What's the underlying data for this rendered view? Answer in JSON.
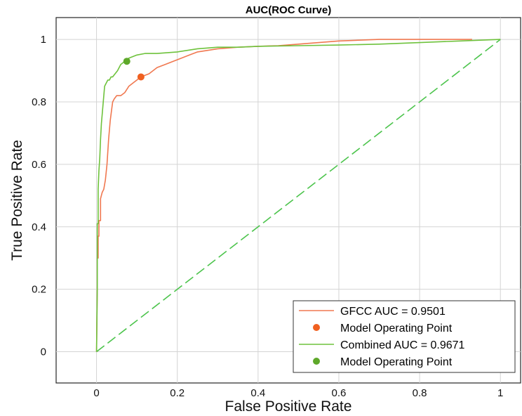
{
  "chart_data": {
    "type": "line",
    "title": "AUC(ROC Curve)",
    "xlabel": "False Positive Rate",
    "ylabel": "True Positive Rate",
    "xlim": [
      -0.1,
      1.05
    ],
    "ylim": [
      -0.1,
      1.07
    ],
    "xticks": [
      0,
      0.2,
      0.4,
      0.6,
      0.8,
      1
    ],
    "xtick_labels": [
      "0",
      "0.2",
      "0.4",
      "0.6",
      "0.8",
      "1"
    ],
    "yticks": [
      0,
      0.2,
      0.4,
      0.6,
      0.8,
      1
    ],
    "ytick_labels": [
      "0",
      "0.2",
      "0.4",
      "0.6",
      "0.8",
      "1"
    ],
    "grid": true,
    "legend_position": "bottom-right",
    "series": [
      {
        "name": "GFCC AUC = 0.9501",
        "kind": "line",
        "color": "#f07850",
        "x": [
          0,
          0.002,
          0.002,
          0.004,
          0.004,
          0.006,
          0.006,
          0.01,
          0.01,
          0.014,
          0.018,
          0.022,
          0.026,
          0.03,
          0.034,
          0.038,
          0.04,
          0.044,
          0.05,
          0.06,
          0.07,
          0.08,
          0.09,
          0.1,
          0.11,
          0.13,
          0.15,
          0.17,
          0.19,
          0.21,
          0.23,
          0.25,
          0.3,
          0.35,
          0.4,
          0.45,
          0.5,
          0.55,
          0.6,
          0.7,
          0.8,
          0.9,
          0.93
        ],
        "y": [
          0,
          0.21,
          0.3,
          0.3,
          0.37,
          0.37,
          0.42,
          0.42,
          0.49,
          0.51,
          0.52,
          0.55,
          0.6,
          0.68,
          0.74,
          0.78,
          0.8,
          0.81,
          0.82,
          0.82,
          0.83,
          0.85,
          0.86,
          0.87,
          0.88,
          0.89,
          0.91,
          0.92,
          0.93,
          0.94,
          0.95,
          0.96,
          0.97,
          0.975,
          0.978,
          0.98,
          0.985,
          0.99,
          0.995,
          1,
          1,
          1,
          1
        ]
      },
      {
        "name": "Model Operating Point",
        "kind": "point",
        "color": "#f06020",
        "x": [
          0.11
        ],
        "y": [
          0.88
        ]
      },
      {
        "name": "Combined AUC = 0.9671",
        "kind": "line",
        "color": "#6ec23c",
        "x": [
          0,
          0.002,
          0.002,
          0.004,
          0.004,
          0.006,
          0.008,
          0.01,
          0.012,
          0.016,
          0.02,
          0.024,
          0.028,
          0.032,
          0.036,
          0.04,
          0.046,
          0.052,
          0.06,
          0.07,
          0.08,
          0.1,
          0.12,
          0.15,
          0.2,
          0.25,
          0.3,
          0.35,
          0.4,
          0.5,
          0.6,
          0.7,
          0.8,
          0.9,
          1
        ],
        "y": [
          0,
          0.21,
          0.41,
          0.41,
          0.52,
          0.58,
          0.62,
          0.68,
          0.73,
          0.79,
          0.85,
          0.86,
          0.87,
          0.87,
          0.88,
          0.88,
          0.89,
          0.9,
          0.92,
          0.93,
          0.94,
          0.95,
          0.955,
          0.955,
          0.96,
          0.97,
          0.975,
          0.975,
          0.978,
          0.98,
          0.982,
          0.985,
          0.99,
          0.995,
          1
        ]
      },
      {
        "name": "Model Operating Point",
        "kind": "point",
        "color": "#5ea82a",
        "x": [
          0.075
        ],
        "y": [
          0.93
        ]
      }
    ],
    "reference_line": {
      "kind": "dashed",
      "color": "#4cc44c",
      "x": [
        0,
        1
      ],
      "y": [
        0,
        1
      ]
    }
  }
}
